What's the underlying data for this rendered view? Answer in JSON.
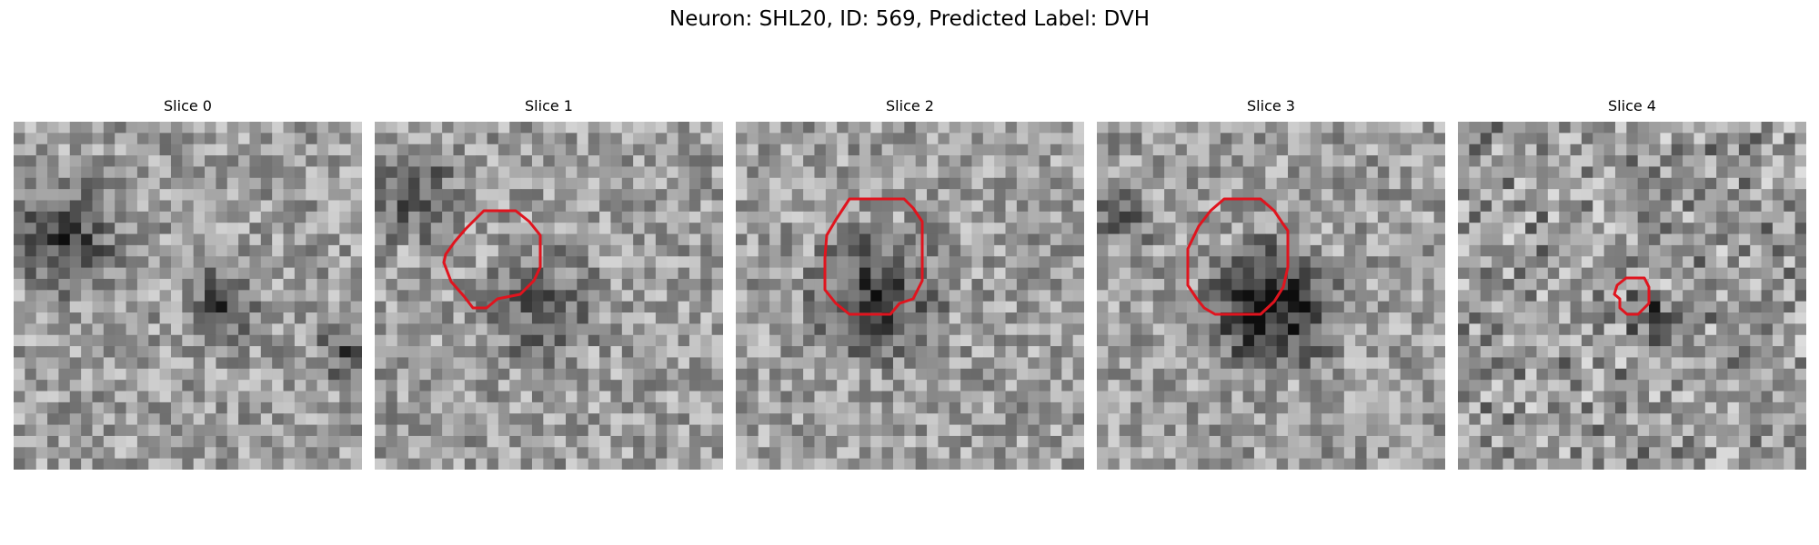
{
  "figure": {
    "title": "Neuron: SHL20, ID: 569, Predicted Label: DVH"
  },
  "panels": [
    {
      "title": "Slice 0",
      "contour": false
    },
    {
      "title": "Slice 1",
      "contour": true
    },
    {
      "title": "Slice 2",
      "contour": true
    },
    {
      "title": "Slice 3",
      "contour": true
    },
    {
      "title": "Slice 4",
      "contour": true
    }
  ],
  "colors": {
    "contour": "#e0141e",
    "colormap": "grayscale"
  }
}
